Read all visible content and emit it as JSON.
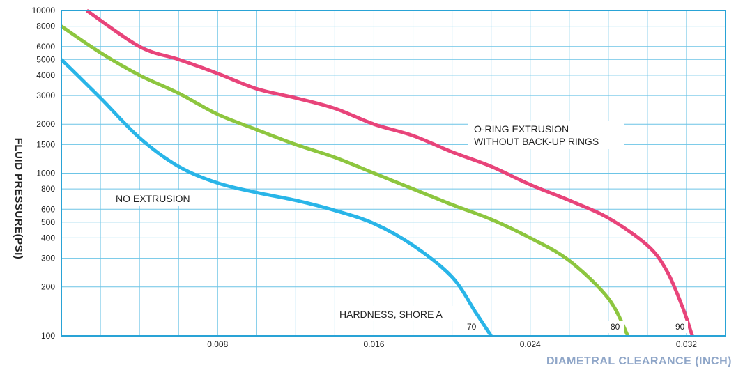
{
  "chart_data": {
    "type": "line",
    "title": "",
    "xlabel": "DIAMETRAL CLEARANCE (INCH)",
    "ylabel": "FLUID PRESSURE(PSI)",
    "x_scale": "linear",
    "y_scale": "log",
    "xlim": [
      0,
      0.034
    ],
    "ylim": [
      100,
      10000
    ],
    "grid": true,
    "x_ticks": [
      0.008,
      0.016,
      0.024,
      0.032
    ],
    "x_tick_labels": [
      "0.008",
      "0.016",
      "0.024",
      "0.032"
    ],
    "y_ticks": [
      100,
      200,
      300,
      400,
      500,
      600,
      800,
      1000,
      1500,
      2000,
      3000,
      4000,
      5000,
      6000,
      8000,
      10000
    ],
    "y_tick_labels": [
      "100",
      "200",
      "300",
      "400",
      "500",
      "600",
      "800",
      "1000",
      "1500",
      "2000",
      "3000",
      "4000",
      "5000",
      "6000",
      "8000",
      "10000"
    ],
    "series": [
      {
        "name": "70",
        "color": "#29b5e8",
        "points": [
          [
            0,
            5000
          ],
          [
            0.002,
            2900
          ],
          [
            0.004,
            1650
          ],
          [
            0.006,
            1100
          ],
          [
            0.008,
            870
          ],
          [
            0.01,
            760
          ],
          [
            0.012,
            680
          ],
          [
            0.014,
            590
          ],
          [
            0.016,
            490
          ],
          [
            0.018,
            360
          ],
          [
            0.02,
            230
          ],
          [
            0.0212,
            140
          ],
          [
            0.022,
            100
          ]
        ]
      },
      {
        "name": "80",
        "color": "#8dc63f",
        "points": [
          [
            0,
            8000
          ],
          [
            0.002,
            5500
          ],
          [
            0.004,
            4000
          ],
          [
            0.006,
            3100
          ],
          [
            0.008,
            2300
          ],
          [
            0.01,
            1850
          ],
          [
            0.012,
            1500
          ],
          [
            0.014,
            1250
          ],
          [
            0.016,
            1000
          ],
          [
            0.018,
            800
          ],
          [
            0.02,
            640
          ],
          [
            0.022,
            520
          ],
          [
            0.024,
            400
          ],
          [
            0.026,
            290
          ],
          [
            0.028,
            170
          ],
          [
            0.029,
            100
          ]
        ]
      },
      {
        "name": "90",
        "color": "#e8447a",
        "points": [
          [
            0.0013,
            10000
          ],
          [
            0.004,
            6000
          ],
          [
            0.006,
            5000
          ],
          [
            0.008,
            4100
          ],
          [
            0.01,
            3300
          ],
          [
            0.012,
            2900
          ],
          [
            0.014,
            2500
          ],
          [
            0.016,
            2000
          ],
          [
            0.018,
            1700
          ],
          [
            0.02,
            1350
          ],
          [
            0.022,
            1100
          ],
          [
            0.024,
            850
          ],
          [
            0.026,
            680
          ],
          [
            0.028,
            530
          ],
          [
            0.03,
            360
          ],
          [
            0.031,
            250
          ],
          [
            0.0318,
            150
          ],
          [
            0.0323,
            100
          ]
        ]
      }
    ],
    "annotations": {
      "no_extrusion": "NO EXTRUSION",
      "extrusion_line1": "O-RING EXTRUSION",
      "extrusion_line2": "WITHOUT BACK-UP RINGS",
      "hardness": "HARDNESS, SHORE A",
      "label_70": "70",
      "label_80": "80",
      "label_90": "90"
    },
    "colors": {
      "frame": "#29a3d6",
      "grid": "#6cc4e6",
      "xlabel": "#8fa6c8"
    }
  }
}
